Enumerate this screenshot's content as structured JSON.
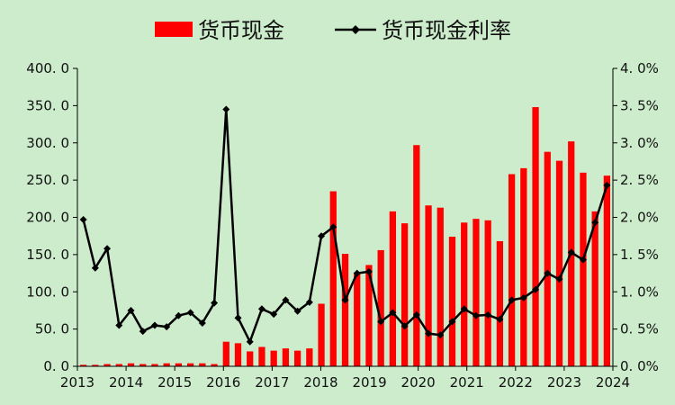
{
  "chart_data": {
    "type": "bar+line",
    "legend": {
      "placement": "top-center",
      "items": [
        {
          "label": "货币现金",
          "kind": "bar",
          "color": "#ff0000"
        },
        {
          "label": "货币现金利率",
          "kind": "line",
          "color": "#000000"
        }
      ]
    },
    "x_axis": {
      "ticks": [
        "2013",
        "2014",
        "2015",
        "2016",
        "2017",
        "2018",
        "2019",
        "2020",
        "2021",
        "2022",
        "2023",
        "2024"
      ]
    },
    "y_left": {
      "lim": [
        0,
        400
      ],
      "ticks": [
        "400. 0",
        "350. 0",
        "300. 0",
        "250. 0",
        "200. 0",
        "150. 0",
        "100. 0",
        "50. 0",
        "0. 0"
      ]
    },
    "y_right": {
      "lim": [
        0,
        0.04
      ],
      "ticks": [
        "4. 0%",
        "3. 5%",
        "3. 0%",
        "2. 5%",
        "2. 0%",
        "1. 5%",
        "1. 0%",
        "0. 5%",
        "0. 0%"
      ]
    },
    "grid": false,
    "series": [
      {
        "name": "货币现金",
        "axis": "left",
        "color": "#ff0000",
        "values": [
          2,
          2,
          3,
          3,
          4,
          3,
          3,
          4,
          4,
          4,
          4,
          3,
          33,
          31,
          20,
          26,
          21,
          24,
          21,
          24,
          84,
          235,
          151,
          126,
          136,
          156,
          208,
          192,
          297,
          216,
          213,
          174,
          193,
          198,
          196,
          168,
          258,
          266,
          348,
          288,
          276,
          302,
          260,
          208,
          256
        ]
      },
      {
        "name": "货币现金利率",
        "axis": "right",
        "color": "#000000",
        "values": [
          0.0197,
          0.0132,
          0.0158,
          0.0055,
          0.0075,
          0.0047,
          0.0055,
          0.0053,
          0.0068,
          0.0072,
          0.0058,
          0.0085,
          0.0345,
          0.0065,
          0.0033,
          0.0077,
          0.007,
          0.0089,
          0.0074,
          0.0086,
          0.0175,
          0.0187,
          0.0089,
          0.0125,
          0.0127,
          0.006,
          0.0072,
          0.0054,
          0.0069,
          0.0044,
          0.0042,
          0.006,
          0.0077,
          0.0068,
          0.0069,
          0.0063,
          0.0089,
          0.0092,
          0.0103,
          0.0125,
          0.0117,
          0.0153,
          0.0143,
          0.0193,
          0.0243
        ]
      }
    ]
  }
}
